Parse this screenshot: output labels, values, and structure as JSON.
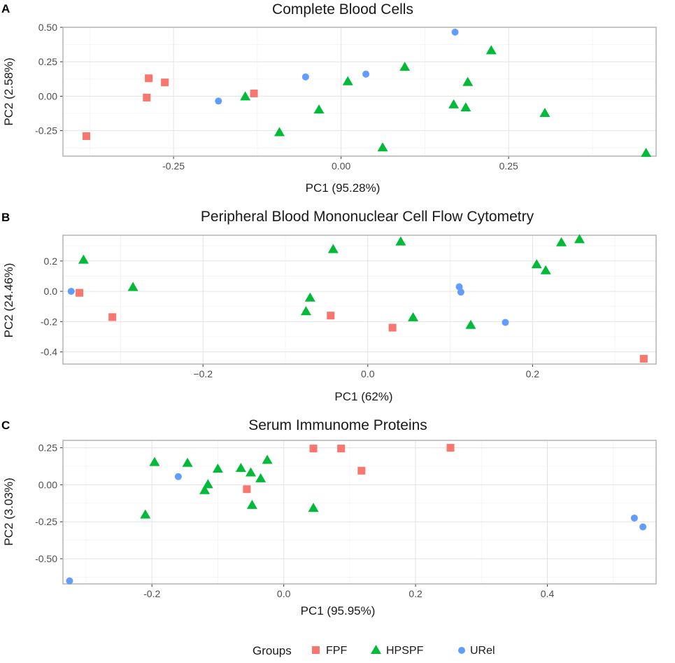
{
  "colors": {
    "FPF": "#F8766D",
    "HPSPF": "#00BA38",
    "URel": "#619CFF"
  },
  "legend": {
    "title": "Groups",
    "items": [
      "FPF",
      "HPSPF",
      "URel"
    ]
  },
  "chart_data": [
    {
      "type": "scatter",
      "panel": "A",
      "title": "Complete Blood Cells",
      "xlabel": "PC1 (95.28%)",
      "ylabel": "PC2 (2.58%)",
      "xlim": [
        -0.415,
        0.47
      ],
      "ylim": [
        -0.435,
        0.5
      ],
      "xticks": [
        -0.25,
        0,
        0.25
      ],
      "xtick_labels": [
        "-0.25",
        "0.00",
        "0.25"
      ],
      "yticks": [
        -0.25,
        0,
        0.25,
        0.5
      ],
      "ytick_labels": [
        "-0.25",
        "0.00",
        "0.25",
        "0.50"
      ],
      "series": [
        {
          "name": "FPF",
          "points": [
            [
              -0.38,
              -0.29
            ],
            [
              -0.287,
              0.13
            ],
            [
              -0.29,
              -0.01
            ],
            [
              -0.263,
              0.1
            ],
            [
              -0.13,
              0.02
            ]
          ]
        },
        {
          "name": "HPSPF",
          "points": [
            [
              -0.143,
              0.0
            ],
            [
              -0.092,
              -0.26
            ],
            [
              -0.033,
              -0.095
            ],
            [
              0.01,
              0.11
            ],
            [
              0.062,
              -0.37
            ],
            [
              0.095,
              0.215
            ],
            [
              0.168,
              -0.058
            ],
            [
              0.186,
              -0.08
            ],
            [
              0.189,
              0.105
            ],
            [
              0.224,
              0.335
            ],
            [
              0.304,
              -0.12
            ],
            [
              0.455,
              -0.41
            ]
          ]
        },
        {
          "name": "URel",
          "points": [
            [
              -0.183,
              -0.035
            ],
            [
              -0.053,
              0.14
            ],
            [
              0.037,
              0.16
            ],
            [
              0.17,
              0.465
            ]
          ]
        }
      ]
    },
    {
      "type": "scatter",
      "panel": "B",
      "title": "Peripheral Blood Mononuclear Cell Flow Cytometry",
      "xlabel": "PC1 (62%)",
      "ylabel": "PC2 (24.46%)",
      "xlim": [
        -0.37,
        0.35
      ],
      "ylim": [
        -0.48,
        0.37
      ],
      "xticks": [
        -0.2,
        0,
        0.2
      ],
      "xtick_labels": [
        "−0.2",
        "0.0",
        "0.2"
      ],
      "yticks": [
        -0.4,
        -0.2,
        0,
        0.2
      ],
      "ytick_labels": [
        "-0.4",
        "-0.2",
        "0.0",
        "0.2"
      ],
      "series": [
        {
          "name": "FPF",
          "points": [
            [
              -0.35,
              -0.01
            ],
            [
              -0.31,
              -0.17
            ],
            [
              -0.045,
              -0.16
            ],
            [
              0.03,
              -0.24
            ],
            [
              0.335,
              -0.445
            ]
          ]
        },
        {
          "name": "HPSPF",
          "points": [
            [
              -0.345,
              0.21
            ],
            [
              -0.285,
              0.03
            ],
            [
              -0.075,
              -0.13
            ],
            [
              -0.07,
              -0.04
            ],
            [
              -0.042,
              0.28
            ],
            [
              0.04,
              0.33
            ],
            [
              0.055,
              -0.17
            ],
            [
              0.125,
              -0.22
            ],
            [
              0.205,
              0.18
            ],
            [
              0.216,
              0.14
            ],
            [
              0.235,
              0.325
            ],
            [
              0.257,
              0.345
            ]
          ]
        },
        {
          "name": "URel",
          "points": [
            [
              -0.36,
              0.0
            ],
            [
              0.111,
              0.03
            ],
            [
              0.113,
              -0.005
            ],
            [
              0.167,
              -0.205
            ]
          ]
        }
      ]
    },
    {
      "type": "scatter",
      "panel": "C",
      "title": "Serum Immunome Proteins",
      "xlabel": "PC1 (95.95%)",
      "ylabel": "PC2 (3.03%)",
      "xlim": [
        -0.335,
        0.565
      ],
      "ylim": [
        -0.67,
        0.3
      ],
      "xticks": [
        -0.2,
        0,
        0.2,
        0.4
      ],
      "xtick_labels": [
        "-0.2",
        "0.0",
        "0.2",
        "0.4"
      ],
      "yticks": [
        -0.5,
        -0.25,
        0,
        0.25
      ],
      "ytick_labels": [
        "-0.50",
        "-0.25",
        "0.00",
        "0.25"
      ],
      "series": [
        {
          "name": "FPF",
          "points": [
            [
              -0.056,
              -0.03
            ],
            [
              0.045,
              0.245
            ],
            [
              0.087,
              0.245
            ],
            [
              0.118,
              0.095
            ],
            [
              0.253,
              0.25
            ]
          ]
        },
        {
          "name": "HPSPF",
          "points": [
            [
              -0.21,
              -0.2
            ],
            [
              -0.196,
              0.155
            ],
            [
              -0.146,
              0.15
            ],
            [
              -0.12,
              -0.035
            ],
            [
              -0.115,
              0.005
            ],
            [
              -0.1,
              0.11
            ],
            [
              -0.065,
              0.115
            ],
            [
              -0.05,
              0.085
            ],
            [
              -0.048,
              -0.135
            ],
            [
              -0.035,
              0.045
            ],
            [
              -0.025,
              0.17
            ],
            [
              0.045,
              -0.155
            ]
          ]
        },
        {
          "name": "URel",
          "points": [
            [
              -0.325,
              -0.65
            ],
            [
              -0.16,
              0.055
            ],
            [
              0.532,
              -0.225
            ],
            [
              0.545,
              -0.285
            ]
          ]
        }
      ]
    }
  ]
}
